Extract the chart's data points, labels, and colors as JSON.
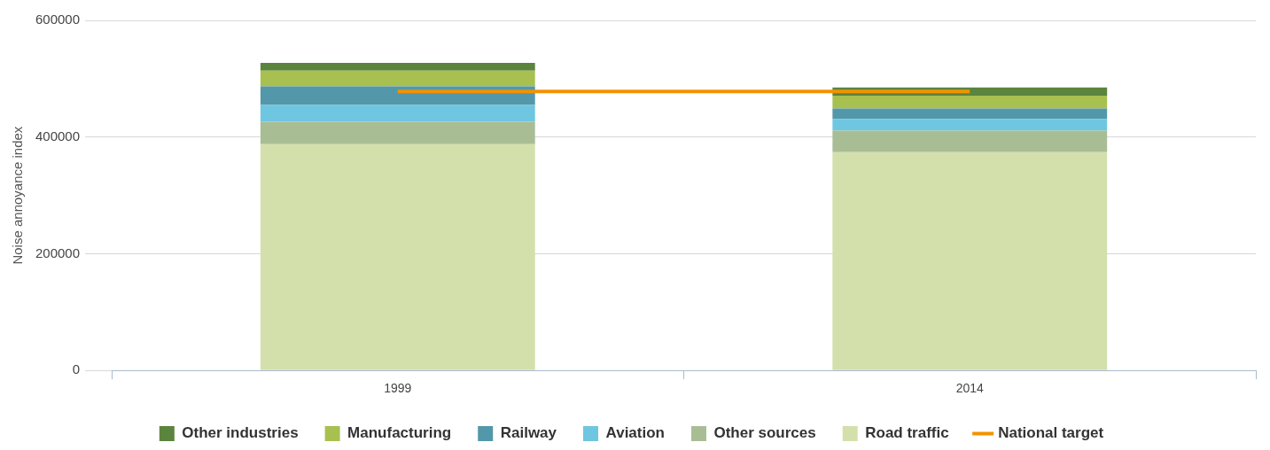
{
  "chart_data": {
    "type": "bar",
    "stacked": true,
    "ylabel": "Noise annoyance index",
    "categories": [
      "1999",
      "2014"
    ],
    "ylim": [
      0,
      600000
    ],
    "yticks": [
      0,
      200000,
      400000,
      600000
    ],
    "grid": "y",
    "legend": "bottom",
    "series": [
      {
        "name": "Road traffic",
        "color": "#d3e0ab",
        "values": [
          388000,
          374000
        ]
      },
      {
        "name": "Other sources",
        "color": "#a9bd95",
        "values": [
          38000,
          37000
        ]
      },
      {
        "name": "Aviation",
        "color": "#6fc6e0",
        "values": [
          29000,
          20000
        ]
      },
      {
        "name": "Railway",
        "color": "#5398aa",
        "values": [
          32000,
          18000
        ]
      },
      {
        "name": "Manufacturing",
        "color": "#a8c050",
        "values": [
          27000,
          22000
        ]
      },
      {
        "name": "Other industries",
        "color": "#5b843e",
        "values": [
          13000,
          14000
        ]
      },
      {
        "name": "National target",
        "type": "line",
        "color": "#f39200",
        "values": [
          478000,
          478000
        ]
      }
    ]
  }
}
